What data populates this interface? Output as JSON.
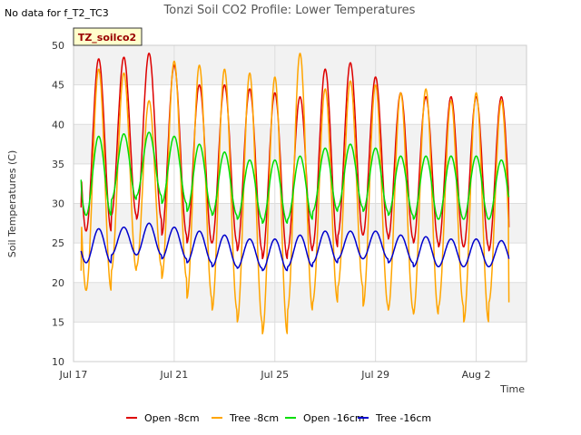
{
  "header": {
    "nodata_text": "No data for f_T2_TC3",
    "site_badge": "TZ_soilco2"
  },
  "chart_data": {
    "type": "line",
    "title": "Tonzi Soil CO2 Profile: Lower Temperatures",
    "xlabel": "Time",
    "ylabel": "Soil Temperatures (C)",
    "ylim": [
      10,
      50
    ],
    "yticks": [
      10,
      15,
      20,
      25,
      30,
      35,
      40,
      45,
      50
    ],
    "xlim_days": [
      0,
      18
    ],
    "xticks": [
      {
        "day": 0,
        "label": "Jul 17"
      },
      {
        "day": 4,
        "label": "Jul 21"
      },
      {
        "day": 8,
        "label": "Jul 25"
      },
      {
        "day": 12,
        "label": "Jul 29"
      },
      {
        "day": 16,
        "label": "Aug 2"
      }
    ],
    "grid": true,
    "legend_position": "bottom",
    "x_start_day": 0.3,
    "x_end_day": 17.3,
    "series": [
      {
        "name": "Open -8cm",
        "color": "#dd0000",
        "start_value": 29.5,
        "end_value": 27.0,
        "daily_max": [
          48.3,
          48.5,
          49.0,
          47.5,
          45.0,
          45.0,
          44.5,
          44.0,
          43.5,
          47.0,
          47.8,
          46.0,
          44.0,
          43.5,
          43.5,
          43.5,
          43.5
        ],
        "daily_min": [
          26.5,
          28.5,
          28.0,
          26.0,
          25.0,
          25.0,
          24.0,
          23.0,
          24.0,
          24.5,
          26.0,
          26.0,
          25.5,
          25.0,
          24.5,
          24.5,
          24.0
        ]
      },
      {
        "name": "Tree -8cm",
        "color": "#ffa500",
        "start_value": 21.5,
        "end_value": 17.5,
        "daily_max": [
          47.0,
          46.5,
          43.0,
          48.0,
          47.5,
          47.0,
          46.5,
          46.0,
          49.0,
          44.5,
          45.5,
          45.0,
          44.0,
          44.5,
          43.0,
          44.0,
          43.0
        ],
        "daily_min": [
          19.0,
          21.5,
          22.0,
          20.5,
          18.0,
          16.5,
          15.0,
          13.5,
          16.5,
          17.5,
          19.5,
          17.0,
          16.5,
          16.0,
          17.0,
          15.0,
          17.5
        ]
      },
      {
        "name": "Open -16cm",
        "color": "#00dd00",
        "start_value": 33.0,
        "end_value": 30.8,
        "daily_max": [
          38.5,
          38.8,
          39.0,
          38.5,
          37.5,
          36.5,
          35.5,
          35.5,
          36.0,
          37.0,
          37.5,
          37.0,
          36.0,
          36.0,
          36.0,
          36.0,
          35.5
        ],
        "daily_min": [
          28.5,
          30.5,
          31.0,
          30.0,
          29.0,
          28.5,
          28.0,
          27.5,
          28.0,
          29.0,
          29.5,
          29.0,
          28.5,
          28.0,
          28.0,
          28.0,
          28.0
        ]
      },
      {
        "name": "Tree -16cm",
        "color": "#0000cc",
        "start_value": 24.0,
        "end_value": 23.0,
        "daily_max": [
          26.8,
          27.0,
          27.5,
          27.0,
          26.5,
          26.0,
          25.5,
          25.5,
          26.0,
          26.5,
          26.5,
          26.5,
          26.0,
          25.8,
          25.5,
          25.5,
          25.3
        ],
        "daily_min": [
          22.5,
          23.5,
          23.5,
          23.0,
          22.5,
          22.0,
          21.8,
          21.5,
          22.0,
          22.5,
          23.0,
          23.0,
          22.5,
          22.0,
          22.0,
          22.0,
          22.0
        ]
      }
    ]
  }
}
